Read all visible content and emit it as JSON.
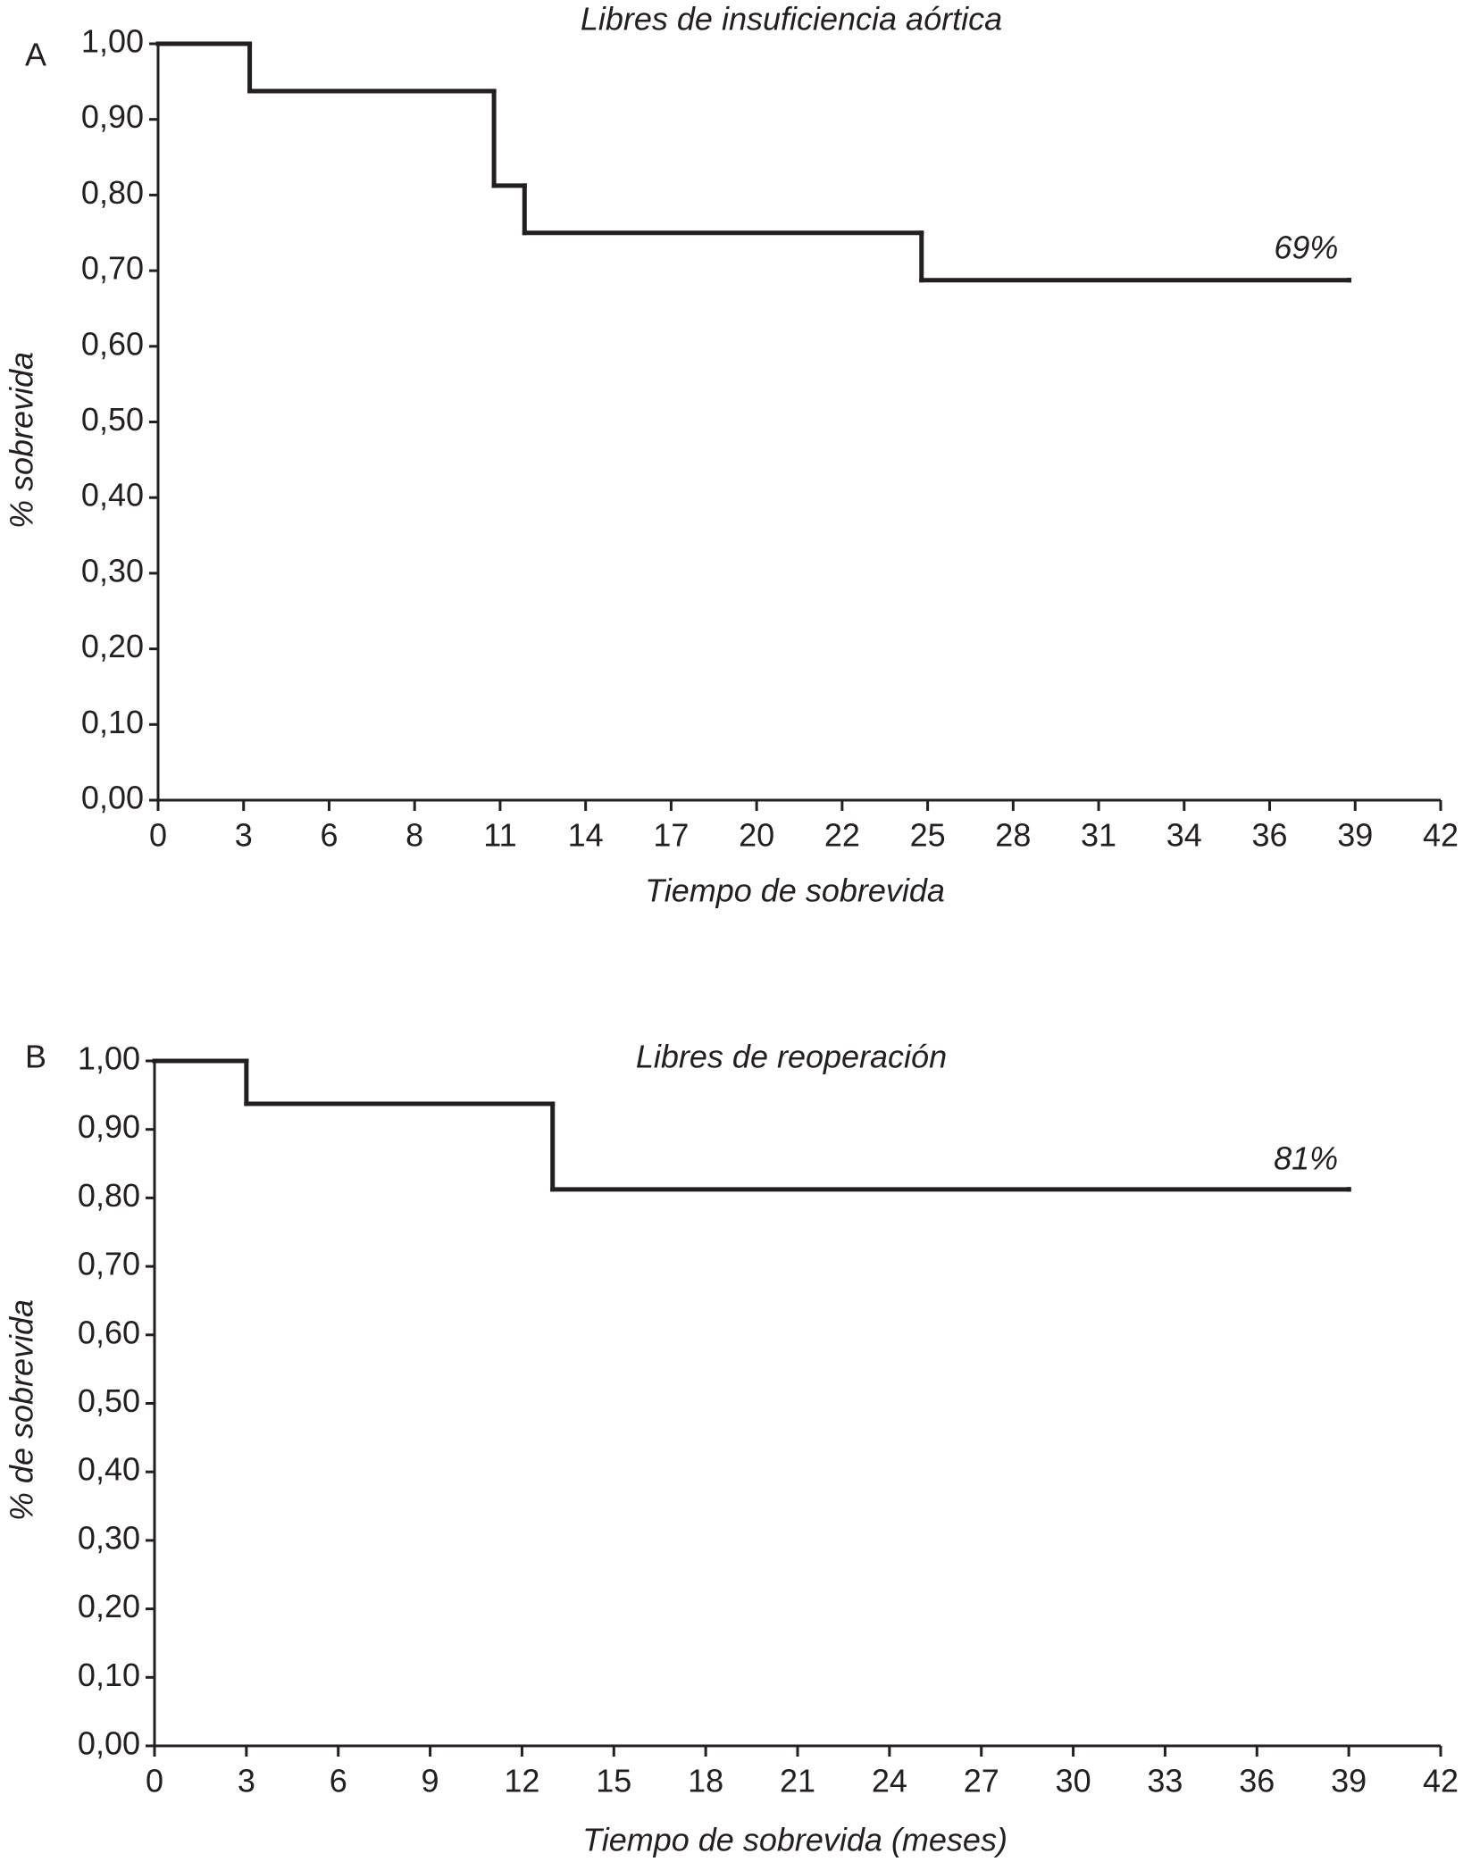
{
  "chart_data": [
    {
      "type": "line",
      "step": true,
      "panel_label": "A",
      "title": "Libres de insuficiencia aórtica",
      "x_label": "Tiempo de sobrevida",
      "y_label": "% sobrevida",
      "color": "#231f20",
      "annotation": "69%",
      "x": [
        0,
        3,
        11,
        12,
        25,
        39
      ],
      "values": [
        1,
        0.9375,
        0.8125,
        0.75,
        0.6875,
        0.6875
      ],
      "xlim": [
        0,
        42
      ],
      "xticks": [
        0,
        {
          "value": 2.8,
          "label": "3"
        },
        {
          "value": 5.6,
          "label": "6"
        },
        {
          "value": 8.4,
          "label": "8"
        },
        {
          "value": 11.2,
          "label": "11"
        },
        14,
        {
          "value": 16.8,
          "label": "17"
        },
        {
          "value": 19.6,
          "label": "20"
        },
        {
          "value": 22.4,
          "label": "22"
        },
        {
          "value": 25.2,
          "label": "25"
        },
        28,
        {
          "value": 30.8,
          "label": "31"
        },
        {
          "value": 33.6,
          "label": "34"
        },
        {
          "value": 36.4,
          "label": "36"
        },
        {
          "value": 39.2,
          "label": "39"
        },
        42
      ],
      "ylim": [
        0,
        1
      ],
      "yticks": [
        {
          "value": 0,
          "label": "0,00"
        },
        {
          "value": 0.1,
          "label": "0,10"
        },
        {
          "value": 0.2,
          "label": "0,20"
        },
        {
          "value": 0.3,
          "label": "0,30"
        },
        {
          "value": 0.4,
          "label": "0,40"
        },
        {
          "value": 0.5,
          "label": "0,50"
        },
        {
          "value": 0.6,
          "label": "0,60"
        },
        {
          "value": 0.7,
          "label": "0,70"
        },
        {
          "value": 0.8,
          "label": "0,80"
        },
        {
          "value": 0.9,
          "label": "0,90"
        },
        {
          "value": 1,
          "label": "1,00"
        }
      ]
    },
    {
      "type": "line",
      "step": true,
      "panel_label": "B",
      "title": "Libres de reoperación",
      "x_label": "Tiempo de sobrevida (meses)",
      "y_label": "%  de sobrevida",
      "color": "#231f20",
      "annotation": "81%",
      "x": [
        0,
        3,
        13,
        39
      ],
      "values": [
        1,
        0.9375,
        0.8125,
        0.8125
      ],
      "xlim": [
        0,
        42
      ],
      "xticks": [
        0,
        3,
        6,
        9,
        12,
        15,
        18,
        21,
        24,
        27,
        30,
        33,
        36,
        39,
        42
      ],
      "ylim": [
        0,
        1
      ],
      "yticks": [
        {
          "value": 0,
          "label": "0,00"
        },
        {
          "value": 0.1,
          "label": "0,10"
        },
        {
          "value": 0.2,
          "label": "0,20"
        },
        {
          "value": 0.3,
          "label": "0,30"
        },
        {
          "value": 0.4,
          "label": "0,40"
        },
        {
          "value": 0.5,
          "label": "0,50"
        },
        {
          "value": 0.6,
          "label": "0,60"
        },
        {
          "value": 0.7,
          "label": "0,70"
        },
        {
          "value": 0.8,
          "label": "0,80"
        },
        {
          "value": 0.9,
          "label": "0,90"
        },
        {
          "value": 1,
          "label": "1,00"
        }
      ]
    }
  ]
}
